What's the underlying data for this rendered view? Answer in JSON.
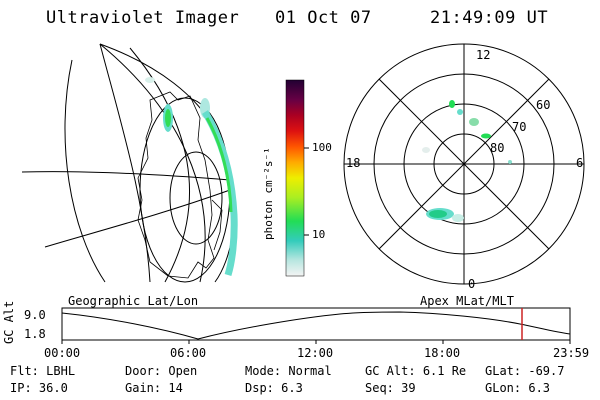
{
  "header": {
    "instrument": "Ultraviolet Imager",
    "date": "01 Oct 07",
    "time": "21:49:09 UT"
  },
  "colorbar": {
    "label": "photon cm⁻²s⁻¹",
    "ticks": [
      "100",
      "10"
    ]
  },
  "polar_plot": {
    "mlt_labels": {
      "top": "12",
      "bottom": "0",
      "left": "18",
      "right": "6"
    },
    "lat_labels": [
      "60",
      "70",
      "80"
    ]
  },
  "panel_labels": {
    "left": "Geographic Lat/Lon",
    "right": "Apex MLat/MLT"
  },
  "altitude_plot": {
    "ylabel": "GC Alt",
    "yticks": [
      "9.0",
      "1.8"
    ],
    "xticks": [
      "00:00",
      "06:00",
      "12:00",
      "18:00",
      "23:59"
    ]
  },
  "info_rows": [
    [
      {
        "label": "Flt:",
        "value": "LBHL"
      },
      {
        "label": "Door:",
        "value": "Open"
      },
      {
        "label": "Mode:",
        "value": "Normal"
      },
      {
        "label": "GC Alt:",
        "value": "6.1 Re"
      },
      {
        "label": "GLat:",
        "value": "-69.7"
      }
    ],
    [
      {
        "label": "IP:",
        "value": "36.0"
      },
      {
        "label": "Gain:",
        "value": "14"
      },
      {
        "label": "Dsp:",
        "value": "6.3"
      },
      {
        "label": "Seq:",
        "value": "39"
      },
      {
        "label": "GLon:",
        "value": "6.3"
      }
    ]
  ],
  "colors": {
    "aurora_green": "#33dd55",
    "aurora_cyan": "#66ddcc",
    "marker_red": "#cc2222"
  }
}
